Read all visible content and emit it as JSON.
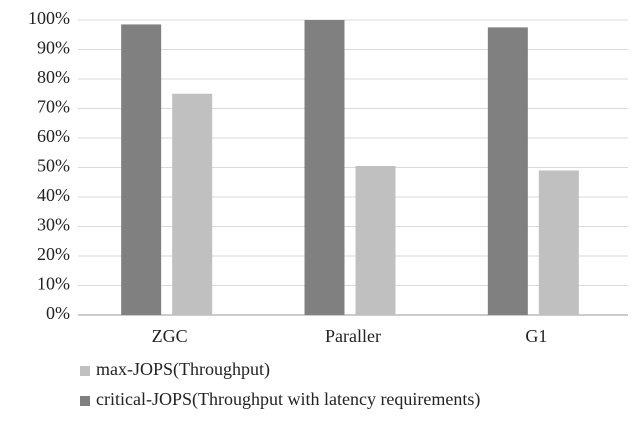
{
  "chart_data": {
    "type": "bar",
    "categories": [
      "ZGC",
      "Paraller",
      "G1"
    ],
    "series": [
      {
        "name": "max-JOPS(Throughput)",
        "color": "#c0c0c0",
        "values": [
          75,
          50.5,
          49
        ]
      },
      {
        "name": "critical-JOPS(Throughput with latency requirements)",
        "color": "#808080",
        "values": [
          98.5,
          100,
          97.5
        ]
      }
    ],
    "ylim": [
      0,
      100
    ],
    "yticks": [
      {
        "value": 0,
        "label": "0%"
      },
      {
        "value": 10,
        "label": "10%"
      },
      {
        "value": 20,
        "label": "20%"
      },
      {
        "value": 30,
        "label": "30%"
      },
      {
        "value": 40,
        "label": "40%"
      },
      {
        "value": 50,
        "label": "50%"
      },
      {
        "value": 60,
        "label": "60%"
      },
      {
        "value": 70,
        "label": "70%"
      },
      {
        "value": 80,
        "label": "80%"
      },
      {
        "value": 90,
        "label": "90%"
      },
      {
        "value": 100,
        "label": "100%"
      }
    ],
    "grid": true,
    "legend": "bottom"
  }
}
